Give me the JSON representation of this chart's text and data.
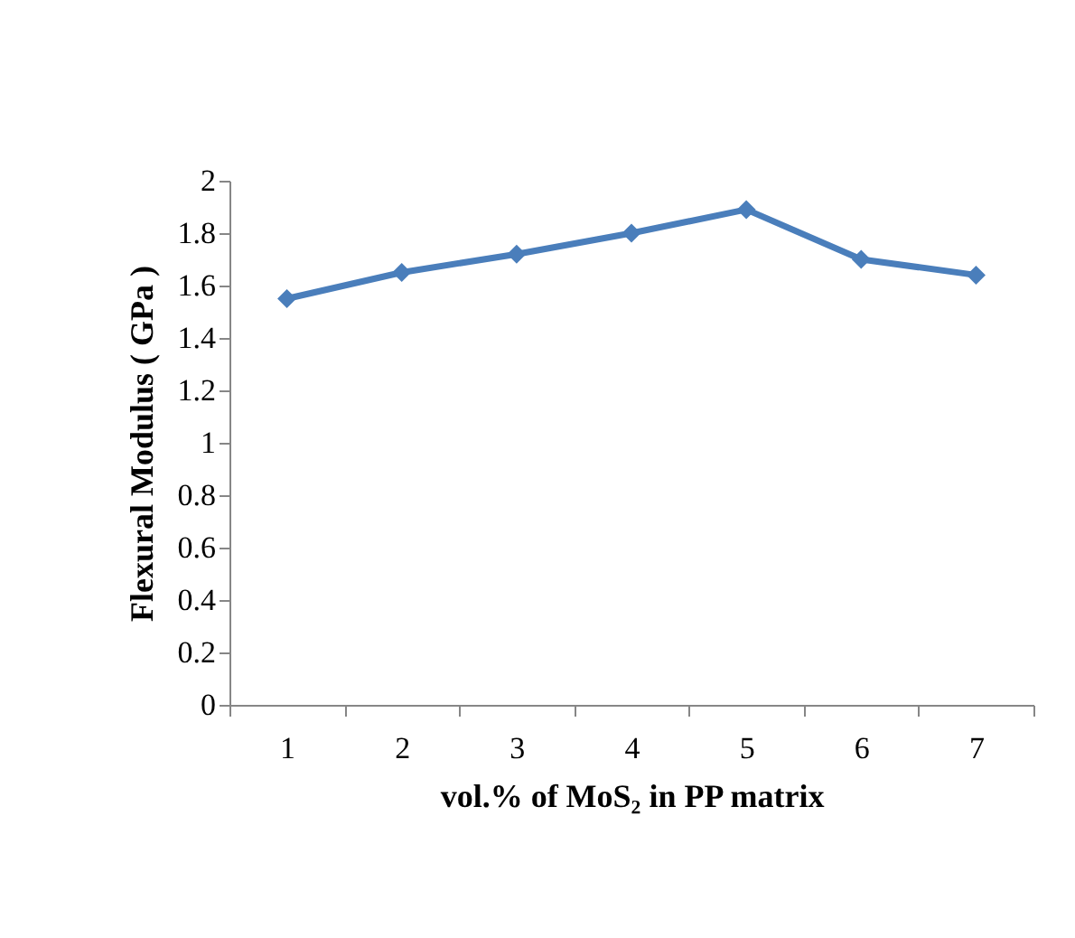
{
  "chart_data": {
    "type": "line",
    "xlabel": "vol.% of MoS₂  in PP matrix",
    "ylabel": "Flexural Modulus ( GPa )",
    "categories": [
      "1",
      "2",
      "3",
      "4",
      "5",
      "6",
      "7"
    ],
    "series": [
      {
        "color": "#4a7ebb",
        "values": [
          1.55,
          1.65,
          1.72,
          1.8,
          1.89,
          1.7,
          1.64
        ]
      }
    ],
    "ylim": [
      0,
      2
    ],
    "yticks": [
      0,
      0.2,
      0.4,
      0.6,
      0.8,
      1,
      1.2,
      1.4,
      1.6,
      1.8,
      2
    ],
    "grid": false,
    "legend": false,
    "marker": "diamond",
    "line_style": "solid"
  }
}
